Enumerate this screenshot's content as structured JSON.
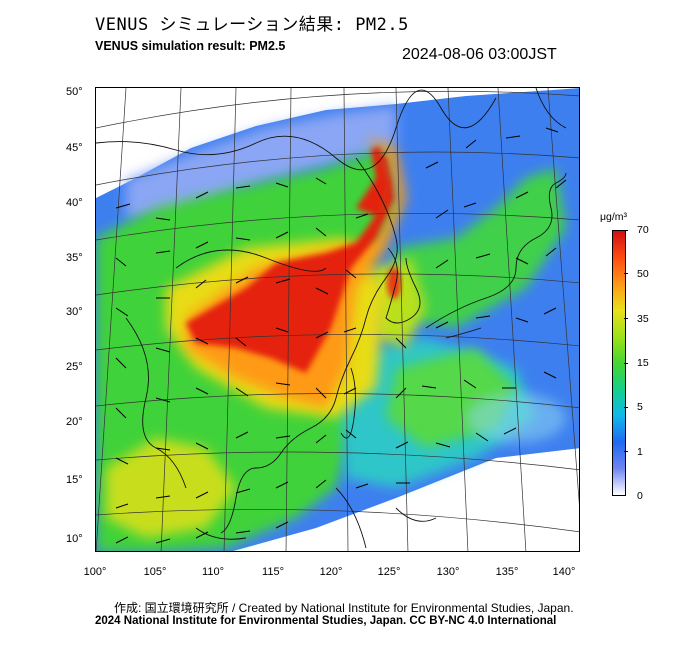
{
  "header": {
    "title_jp": "VENUS シミュレーション結果: PM2.5",
    "title_en": "VENUS simulation result: PM2.5",
    "timestamp": "2024-08-06 03:00JST"
  },
  "map": {
    "lat_labels": [
      "50°",
      "45°",
      "40°",
      "35°",
      "30°",
      "25°",
      "20°",
      "15°",
      "10°"
    ],
    "lon_labels": [
      "100°",
      "105°",
      "110°",
      "115°",
      "120°",
      "125°",
      "130°",
      "135°",
      "140°"
    ],
    "lat_range": [
      9,
      51
    ],
    "lon_range": [
      100,
      141
    ]
  },
  "colorbar": {
    "unit": "μg/m³",
    "labels": [
      "70",
      "50",
      "35",
      "15",
      "5",
      "1",
      "0"
    ],
    "colors": [
      "#ffffff",
      "#6f86f0",
      "#1e6af0",
      "#11b8ec",
      "#15d08a",
      "#45d630",
      "#9ee21a",
      "#e9e01a",
      "#ff9818",
      "#ff4a12",
      "#d01010"
    ]
  },
  "footer": {
    "credit_line": "作成: 国立環境研究所 / Created by National Institute for Environmental Studies, Japan.",
    "copyright_line": "2024 National Institute for Environmental Studies, Japan. CC BY-NC 4.0 International"
  }
}
